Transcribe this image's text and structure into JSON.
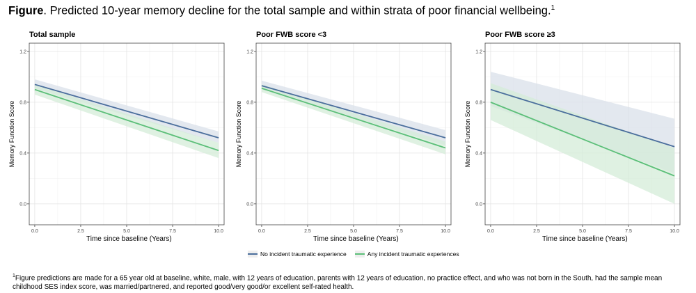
{
  "figure": {
    "title_bold": "Figure",
    "title_rest": ". Predicted 10-year memory decline for the total sample and within strata of poor financial wellbeing.",
    "title_sup": "1"
  },
  "chart_data": [
    {
      "type": "line",
      "title": "Total sample",
      "xlabel": "Time since baseline (Years)",
      "ylabel": "Memory Function Score",
      "xlim": [
        0,
        10
      ],
      "ylim": [
        0,
        1.2
      ],
      "xticks": [
        "0.0",
        "2.5",
        "5.0",
        "7.5",
        "10.0"
      ],
      "yticks": [
        "0.0",
        "0.4",
        "0.8",
        "1.2"
      ],
      "series": [
        {
          "name": "No incident traumatic experience",
          "color": "#4a6e9c",
          "band_color": "#d9e0ea",
          "x": [
            0,
            10
          ],
          "y": [
            0.94,
            0.52
          ],
          "lower": [
            0.91,
            0.48
          ],
          "upper": [
            0.98,
            0.57
          ]
        },
        {
          "name": "Any incident traumatic experiences",
          "color": "#5cbf79",
          "band_color": "#d4ecd8",
          "x": [
            0,
            10
          ],
          "y": [
            0.9,
            0.42
          ],
          "lower": [
            0.86,
            0.36
          ],
          "upper": [
            0.94,
            0.48
          ]
        }
      ]
    },
    {
      "type": "line",
      "title": "Poor FWB score <3",
      "xlabel": "Time since baseline (Years)",
      "ylabel": "Memory Function Score",
      "xlim": [
        0,
        10
      ],
      "ylim": [
        0,
        1.2
      ],
      "xticks": [
        "0.0",
        "2.5",
        "5.0",
        "7.5",
        "10.0"
      ],
      "yticks": [
        "0.0",
        "0.4",
        "0.8",
        "1.2"
      ],
      "series": [
        {
          "name": "No incident traumatic experience",
          "color": "#4a6e9c",
          "band_color": "#d9e0ea",
          "x": [
            0,
            10
          ],
          "y": [
            0.93,
            0.52
          ],
          "lower": [
            0.9,
            0.46
          ],
          "upper": [
            0.97,
            0.58
          ]
        },
        {
          "name": "Any incident traumatic experiences",
          "color": "#5cbf79",
          "band_color": "#d4ecd8",
          "x": [
            0,
            10
          ],
          "y": [
            0.91,
            0.44
          ],
          "lower": [
            0.88,
            0.39
          ],
          "upper": [
            0.94,
            0.49
          ]
        }
      ]
    },
    {
      "type": "line",
      "title": "Poor FWB score ≥3",
      "xlabel": "Time since baseline (Years)",
      "ylabel": "Memory Function Score",
      "xlim": [
        0,
        10
      ],
      "ylim": [
        0,
        1.2
      ],
      "xticks": [
        "0.0",
        "2.5",
        "5.0",
        "7.5",
        "10.0"
      ],
      "yticks": [
        "0.0",
        "0.4",
        "0.8",
        "1.2"
      ],
      "series": [
        {
          "name": "No incident traumatic experience",
          "color": "#4a6e9c",
          "band_color": "#d9e0ea",
          "x": [
            0,
            10
          ],
          "y": [
            0.9,
            0.45
          ],
          "lower": [
            0.77,
            0.24
          ],
          "upper": [
            1.04,
            0.67
          ]
        },
        {
          "name": "Any incident traumatic experiences",
          "color": "#5cbf79",
          "band_color": "#d4ecd8",
          "x": [
            0,
            10
          ],
          "y": [
            0.8,
            0.22
          ],
          "lower": [
            0.66,
            0.0
          ],
          "upper": [
            0.95,
            0.44
          ]
        }
      ]
    }
  ],
  "legend": {
    "items": [
      {
        "label": "No incident traumatic experience",
        "color": "#4a6e9c"
      },
      {
        "label": "Any incident traumatic experiences",
        "color": "#5cbf79"
      }
    ]
  },
  "footnote": {
    "sup": "1",
    "text": "Figure predictions are made for a 65 year old at baseline, white, male, with 12 years of education, parents with 12 years of education, no practice effect, and who was not born in the South, had the sample mean childhood SES index score, was married/partnered, and reported good/very good/or excellent self-rated health."
  }
}
